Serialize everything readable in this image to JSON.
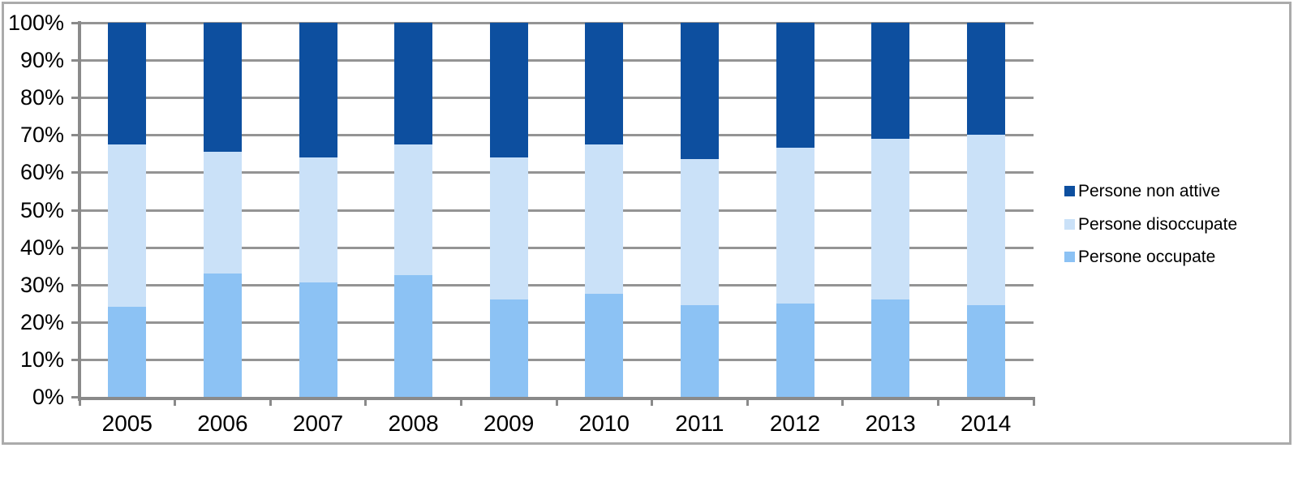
{
  "chart_data": {
    "type": "bar",
    "stacked": true,
    "percent_stacked": true,
    "title": "",
    "xlabel": "",
    "ylabel": "",
    "ylim": [
      0,
      100
    ],
    "y_tick_step": 10,
    "grid": true,
    "legend_position": "right",
    "categories": [
      "2005",
      "2006",
      "2007",
      "2008",
      "2009",
      "2010",
      "2011",
      "2012",
      "2013",
      "2014"
    ],
    "series": [
      {
        "key": "persone-occupate",
        "name": "Persone occupate",
        "color": "#8cc2f4",
        "values": [
          24,
          33,
          30.5,
          32.5,
          26,
          27.5,
          24.5,
          25,
          26,
          24.5
        ]
      },
      {
        "key": "persone-disoccupate",
        "name": "Persone disoccupate",
        "color": "#cae1f8",
        "values": [
          43.5,
          32.5,
          33.5,
          35,
          38,
          40,
          39,
          41.5,
          43,
          45.5
        ]
      },
      {
        "key": "persone-non-attive",
        "name": "Persone non attive",
        "color": "#0d4f9f",
        "values": [
          32.5,
          34.5,
          36,
          32.5,
          36,
          32.5,
          36.5,
          33.5,
          31,
          30
        ]
      }
    ],
    "legend": [
      {
        "label": "Persone non attive",
        "color": "#0d4f9f"
      },
      {
        "label": "Persone disoccupate",
        "color": "#cae1f8"
      },
      {
        "label": "Persone occupate",
        "color": "#8cc2f4"
      }
    ],
    "y_tick_labels": [
      "0%",
      "10%",
      "20%",
      "30%",
      "40%",
      "50%",
      "60%",
      "70%",
      "80%",
      "90%",
      "100%"
    ],
    "colors": {
      "grid": "#949494",
      "axis": "#8a8a8a",
      "frame": "#ababab",
      "text": "#000000",
      "background": "#ffffff"
    }
  }
}
